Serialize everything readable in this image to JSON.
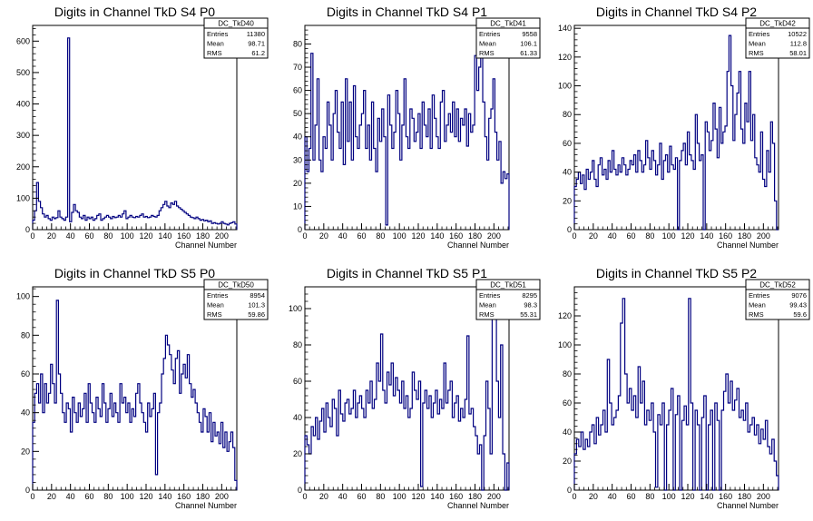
{
  "chart_data": [
    {
      "type": "line",
      "name": "DC_TkD40",
      "title": "Digits in Channel TkD S4 P0",
      "xlabel": "Channel Number",
      "ylabel": "",
      "xlim": [
        0,
        216
      ],
      "ylim": [
        0,
        650
      ],
      "yticks": [
        0,
        100,
        200,
        300,
        400,
        500,
        600
      ],
      "stats": {
        "entries": "11380",
        "mean": "98.71",
        "rms": "61.2"
      },
      "values": [
        30,
        60,
        150,
        90,
        70,
        50,
        40,
        45,
        35,
        30,
        40,
        35,
        38,
        60,
        40,
        35,
        30,
        40,
        610,
        25,
        55,
        80,
        60,
        55,
        40,
        35,
        45,
        30,
        40,
        35,
        40,
        30,
        35,
        45,
        50,
        30,
        35,
        40,
        45,
        40,
        35,
        42,
        38,
        40,
        45,
        40,
        50,
        60,
        35,
        40,
        45,
        40,
        38,
        42,
        40,
        45,
        50,
        40,
        42,
        38,
        40,
        45,
        42,
        40,
        45,
        60,
        70,
        80,
        90,
        75,
        70,
        85,
        80,
        90,
        75,
        70,
        65,
        60,
        55,
        50,
        45,
        40,
        38,
        35,
        40,
        35,
        30,
        32,
        28,
        30,
        25,
        28,
        20,
        22,
        20,
        18,
        20,
        25,
        20,
        18,
        15,
        20,
        22,
        25,
        18
      ]
    },
    {
      "type": "line",
      "name": "DC_TkD41",
      "title": "Digits in Channel TkD S4 P1",
      "xlabel": "Channel Number",
      "ylabel": "",
      "xlim": [
        0,
        216
      ],
      "ylim": [
        0,
        88
      ],
      "yticks": [
        0,
        10,
        20,
        30,
        40,
        50,
        60,
        70,
        80
      ],
      "stats": {
        "entries": "9558",
        "mean": "106.1",
        "rms": "61.33"
      },
      "values": [
        40,
        25,
        35,
        76,
        30,
        45,
        65,
        30,
        25,
        40,
        35,
        55,
        45,
        30,
        50,
        60,
        42,
        35,
        55,
        28,
        65,
        38,
        55,
        30,
        62,
        40,
        35,
        45,
        50,
        60,
        35,
        45,
        30,
        55,
        35,
        25,
        48,
        38,
        52,
        40,
        2,
        58,
        45,
        35,
        42,
        60,
        50,
        30,
        45,
        65,
        40,
        35,
        52,
        48,
        38,
        42,
        50,
        35,
        55,
        45,
        40,
        52,
        35,
        58,
        48,
        40,
        35,
        55,
        60,
        38,
        45,
        50,
        42,
        55,
        40,
        52,
        38,
        48,
        45,
        52,
        36,
        50,
        42,
        45,
        75,
        60,
        70,
        80,
        55,
        40,
        30,
        48,
        52,
        65,
        42,
        30,
        38,
        20,
        25,
        22,
        24
      ]
    },
    {
      "type": "line",
      "name": "DC_TkD42",
      "title": "Digits in Channel TkD S4 P2",
      "xlabel": "Channel Number",
      "ylabel": "",
      "xlim": [
        0,
        216
      ],
      "ylim": [
        0,
        142
      ],
      "yticks": [
        0,
        20,
        40,
        60,
        80,
        100,
        120,
        140
      ],
      "stats": {
        "entries": "10522",
        "mean": "112.8",
        "rms": "58.01"
      },
      "values": [
        30,
        35,
        40,
        32,
        38,
        28,
        42,
        35,
        40,
        48,
        35,
        30,
        45,
        50,
        38,
        42,
        35,
        48,
        40,
        55,
        42,
        38,
        45,
        40,
        50,
        45,
        38,
        42,
        48,
        45,
        52,
        40,
        55,
        48,
        40,
        45,
        62,
        50,
        42,
        55,
        48,
        38,
        45,
        60,
        35,
        48,
        52,
        40,
        58,
        45,
        42,
        50,
        0,
        48,
        55,
        60,
        45,
        68,
        52,
        48,
        42,
        80,
        60,
        48,
        52,
        0,
        75,
        68,
        55,
        62,
        88,
        70,
        50,
        85,
        60,
        68,
        72,
        110,
        135,
        100,
        62,
        80,
        95,
        110,
        70,
        60,
        88,
        75,
        110,
        62,
        80,
        50,
        45,
        40,
        68,
        35,
        30,
        55,
        40,
        75,
        60,
        20,
        0
      ]
    },
    {
      "type": "line",
      "name": "DC_TkD50",
      "title": "Digits in Channel TkD S5 P0",
      "xlabel": "Channel Number",
      "ylabel": "",
      "xlim": [
        0,
        216
      ],
      "ylim": [
        0,
        105
      ],
      "yticks": [
        0,
        20,
        40,
        60,
        80,
        100
      ],
      "stats": {
        "entries": "8954",
        "mean": "101.3",
        "rms": "59.86"
      },
      "values": [
        35,
        50,
        55,
        45,
        60,
        40,
        55,
        45,
        50,
        65,
        55,
        45,
        98,
        60,
        50,
        40,
        35,
        45,
        42,
        30,
        48,
        40,
        35,
        45,
        38,
        42,
        50,
        35,
        55,
        45,
        40,
        35,
        48,
        42,
        38,
        55,
        45,
        35,
        42,
        50,
        38,
        45,
        40,
        35,
        55,
        45,
        48,
        40,
        45,
        35,
        42,
        38,
        50,
        55,
        45,
        40,
        35,
        30,
        45,
        38,
        42,
        50,
        8,
        40,
        45,
        60,
        68,
        80,
        75,
        70,
        62,
        55,
        68,
        72,
        50,
        60,
        65,
        58,
        70,
        55,
        48,
        52,
        45,
        40,
        35,
        30,
        42,
        38,
        30,
        40,
        25,
        35,
        28,
        30,
        24,
        35,
        22,
        30,
        20,
        25,
        30,
        22,
        5
      ]
    },
    {
      "type": "line",
      "name": "DC_TkD51",
      "title": "Digits in Channel TkD S5 P1",
      "xlabel": "Channel Number",
      "ylabel": "",
      "xlim": [
        0,
        216
      ],
      "ylim": [
        0,
        112
      ],
      "yticks": [
        0,
        20,
        40,
        60,
        80,
        100
      ],
      "stats": {
        "entries": "8295",
        "mean": "98.3",
        "rms": "55.31"
      },
      "values": [
        30,
        25,
        20,
        35,
        30,
        40,
        28,
        38,
        45,
        32,
        48,
        40,
        35,
        50,
        45,
        30,
        55,
        42,
        38,
        48,
        50,
        42,
        45,
        55,
        40,
        48,
        52,
        45,
        40,
        55,
        48,
        60,
        45,
        50,
        70,
        60,
        86,
        55,
        48,
        65,
        58,
        70,
        52,
        62,
        55,
        48,
        60,
        45,
        52,
        40,
        45,
        65,
        55,
        50,
        60,
        2,
        48,
        55,
        45,
        52,
        40,
        48,
        55,
        42,
        50,
        45,
        70,
        48,
        55,
        60,
        40,
        48,
        52,
        38,
        45,
        40,
        50,
        85,
        42,
        45,
        35,
        30,
        20,
        25,
        0,
        30,
        60,
        45,
        20,
        98,
        110,
        60,
        40,
        80,
        20,
        0,
        15
      ]
    },
    {
      "type": "line",
      "name": "DC_TkD52",
      "title": "Digits in Channel TkD S5 P2",
      "xlabel": "Channel Number",
      "ylabel": "",
      "xlim": [
        0,
        216
      ],
      "ylim": [
        0,
        140
      ],
      "yticks": [
        0,
        20,
        40,
        60,
        80,
        100,
        120
      ],
      "stats": {
        "entries": "9076",
        "mean": "99.43",
        "rms": "59.6"
      },
      "values": [
        25,
        35,
        30,
        40,
        28,
        35,
        30,
        40,
        45,
        32,
        50,
        38,
        45,
        55,
        40,
        90,
        60,
        45,
        50,
        55,
        65,
        115,
        132,
        80,
        60,
        70,
        55,
        65,
        50,
        85,
        60,
        75,
        45,
        55,
        48,
        60,
        40,
        2,
        52,
        45,
        60,
        0,
        45,
        55,
        70,
        0,
        52,
        65,
        0,
        48,
        58,
        45,
        132,
        60,
        0,
        55,
        45,
        0,
        50,
        65,
        0,
        45,
        55,
        0,
        60,
        48,
        0,
        55,
        68,
        80,
        60,
        75,
        55,
        62,
        70,
        50,
        55,
        48,
        60,
        40,
        45,
        50,
        38,
        45,
        32,
        42,
        35,
        48,
        30,
        25,
        35,
        20,
        10
      ]
    }
  ]
}
